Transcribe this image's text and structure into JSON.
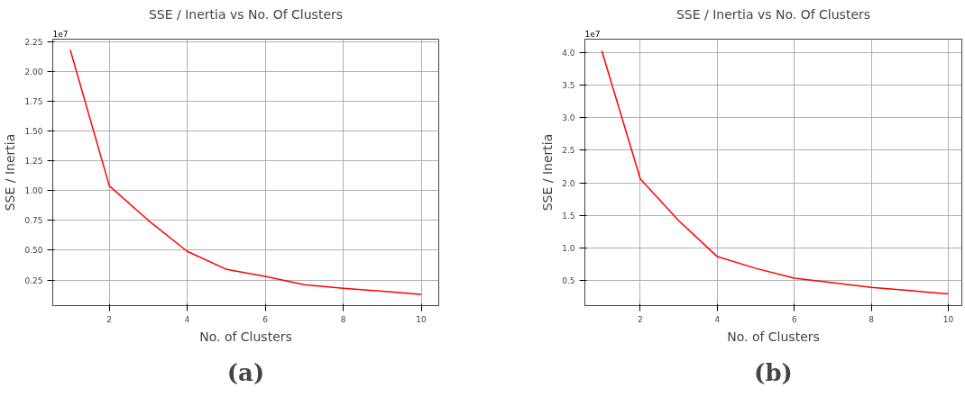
{
  "chart_data": [
    {
      "type": "line",
      "title": "SSE / Inertia vs No. Of Clusters",
      "xlabel": "No. of Clusters",
      "ylabel": "SSE / Inertia",
      "x": [
        1,
        2,
        3,
        4,
        5,
        6,
        7,
        8,
        9,
        10
      ],
      "series": [
        {
          "color": "#ff0000",
          "values": [
            2.18,
            1.04,
            0.75,
            0.49,
            0.34,
            0.28,
            0.21,
            0.18,
            0.155,
            0.13
          ]
        }
      ],
      "xlim": [
        0.55,
        10.45
      ],
      "ylim": [
        0.035,
        2.27
      ],
      "xticks": [
        2,
        4,
        6,
        8,
        10
      ],
      "yticks": [
        0.25,
        {
          "value": 0.5,
          "label": "0.50"
        },
        0.75,
        {
          "value": 1,
          "label": "1.00"
        },
        1.25,
        {
          "value": 1.5,
          "label": "1.50"
        },
        1.75,
        {
          "value": 2,
          "label": "2.00"
        },
        2.25
      ],
      "grid": true,
      "annotations": [
        "1e7",
        "(a)"
      ]
    },
    {
      "type": "line",
      "title": "SSE / Inertia vs No. Of Clusters",
      "xlabel": "No. of Clusters",
      "ylabel": "SSE / Inertia",
      "x": [
        1,
        2,
        3,
        4,
        5,
        6,
        7,
        8,
        9,
        10
      ],
      "series": [
        {
          "color": "#ff0000",
          "values": [
            4.02,
            2.06,
            1.42,
            0.87,
            0.69,
            0.54,
            0.47,
            0.4,
            0.35,
            0.3
          ]
        }
      ],
      "xlim": [
        0.56,
        10.35
      ],
      "ylim": [
        0.12,
        4.2
      ],
      "xticks": [
        2,
        4,
        6,
        8,
        10
      ],
      "yticks": [
        0.5,
        {
          "value": 1,
          "label": "1.0"
        },
        1.5,
        {
          "value": 2,
          "label": "2.0"
        },
        2.5,
        {
          "value": 3,
          "label": "3.0"
        },
        3.5,
        {
          "value": 4,
          "label": "4.0"
        }
      ],
      "grid": true,
      "annotations": [
        "1e7",
        "(b)"
      ]
    }
  ]
}
